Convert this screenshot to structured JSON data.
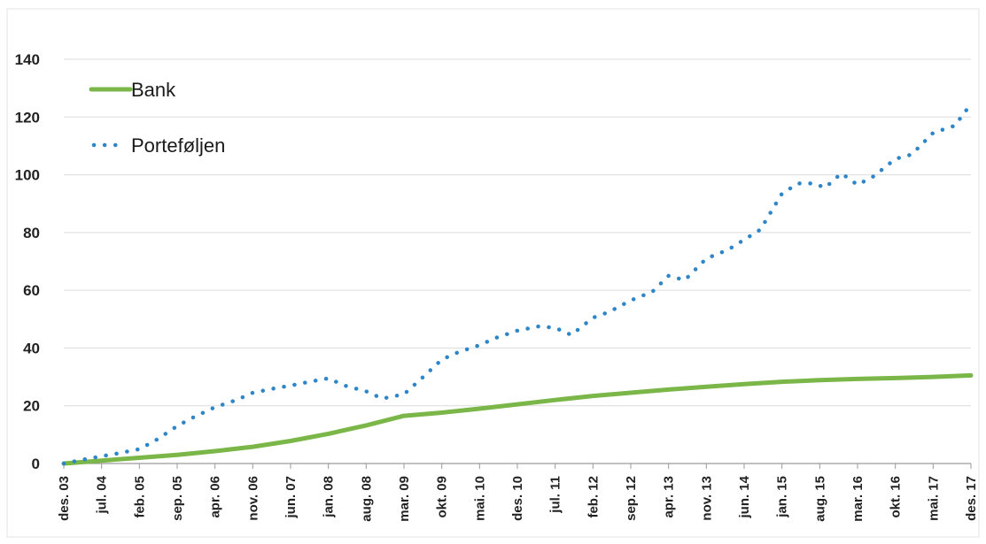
{
  "chart_data": {
    "type": "line",
    "title": "",
    "xlabel": "",
    "ylabel": "",
    "ylim": [
      0,
      140
    ],
    "yticks": [
      0,
      20,
      40,
      60,
      80,
      100,
      120,
      140
    ],
    "x_unit": "month",
    "x_start": "2003-12",
    "x_end": "2017-12",
    "x_tick_labels": [
      "des. 03",
      "jul. 04",
      "feb. 05",
      "sep. 05",
      "apr. 06",
      "nov. 06",
      "jun. 07",
      "jan. 08",
      "aug. 08",
      "mar. 09",
      "okt. 09",
      "mai. 10",
      "des. 10",
      "jul. 11",
      "feb. 12",
      "sep. 12",
      "apr. 13",
      "nov. 13",
      "jun. 14",
      "jan. 15",
      "aug. 15",
      "mar. 16",
      "okt. 16",
      "mai. 17",
      "des. 17"
    ],
    "grid": {
      "horizontal": true,
      "vertical": false
    },
    "legend_position": "top-left",
    "series": [
      {
        "name": "Bank",
        "style": "solid",
        "color": "#7ab648",
        "points": [
          [
            "2003-12",
            0
          ],
          [
            "2004-07",
            1
          ],
          [
            "2005-02",
            2
          ],
          [
            "2005-09",
            3
          ],
          [
            "2006-04",
            4.3
          ],
          [
            "2006-11",
            5.8
          ],
          [
            "2007-06",
            7.8
          ],
          [
            "2008-01",
            10.3
          ],
          [
            "2008-08",
            13.2
          ],
          [
            "2009-03",
            16.5
          ],
          [
            "2009-10",
            17.6
          ],
          [
            "2010-05",
            19
          ],
          [
            "2010-12",
            20.5
          ],
          [
            "2011-07",
            22
          ],
          [
            "2012-02",
            23.4
          ],
          [
            "2012-09",
            24.5
          ],
          [
            "2013-04",
            25.6
          ],
          [
            "2013-11",
            26.6
          ],
          [
            "2014-06",
            27.5
          ],
          [
            "2015-01",
            28.3
          ],
          [
            "2015-08",
            28.9
          ],
          [
            "2016-03",
            29.3
          ],
          [
            "2016-10",
            29.6
          ],
          [
            "2017-05",
            30
          ],
          [
            "2017-12",
            30.5
          ]
        ]
      },
      {
        "name": "Porteføljen",
        "style": "dotted",
        "color": "#2e86c8",
        "points": [
          [
            "2003-12",
            0
          ],
          [
            "2004-04",
            1.5
          ],
          [
            "2004-07",
            2.5
          ],
          [
            "2004-10",
            3.5
          ],
          [
            "2005-02",
            5
          ],
          [
            "2005-05",
            8
          ],
          [
            "2005-09",
            13
          ],
          [
            "2005-12",
            16
          ],
          [
            "2006-04",
            19.5
          ],
          [
            "2006-08",
            22
          ],
          [
            "2006-11",
            24.5
          ],
          [
            "2007-03",
            26
          ],
          [
            "2007-06",
            27
          ],
          [
            "2007-10",
            28.5
          ],
          [
            "2008-01",
            29.5
          ],
          [
            "2008-04",
            27
          ],
          [
            "2008-08",
            25
          ],
          [
            "2008-11",
            22.5
          ],
          [
            "2009-03",
            24
          ],
          [
            "2009-06",
            29
          ],
          [
            "2009-10",
            36
          ],
          [
            "2010-01",
            38.5
          ],
          [
            "2010-05",
            41
          ],
          [
            "2010-08",
            43.5
          ],
          [
            "2010-12",
            46
          ],
          [
            "2011-04",
            47.5
          ],
          [
            "2011-07",
            47
          ],
          [
            "2011-10",
            44.5
          ],
          [
            "2012-02",
            50.5
          ],
          [
            "2012-05",
            52.5
          ],
          [
            "2012-09",
            56.5
          ],
          [
            "2013-01",
            59.5
          ],
          [
            "2013-04",
            65
          ],
          [
            "2013-07",
            63.5
          ],
          [
            "2013-11",
            71
          ],
          [
            "2014-03",
            74
          ],
          [
            "2014-06",
            77.5
          ],
          [
            "2014-09",
            81
          ],
          [
            "2015-01",
            93.5
          ],
          [
            "2015-04",
            97
          ],
          [
            "2015-07",
            97
          ],
          [
            "2015-09",
            95.5
          ],
          [
            "2015-12",
            100.5
          ],
          [
            "2016-03",
            96.5
          ],
          [
            "2016-06",
            99.5
          ],
          [
            "2016-10",
            105.5
          ],
          [
            "2017-01",
            107
          ],
          [
            "2017-05",
            114.5
          ],
          [
            "2017-09",
            117
          ],
          [
            "2017-12",
            124.5
          ]
        ]
      }
    ]
  }
}
